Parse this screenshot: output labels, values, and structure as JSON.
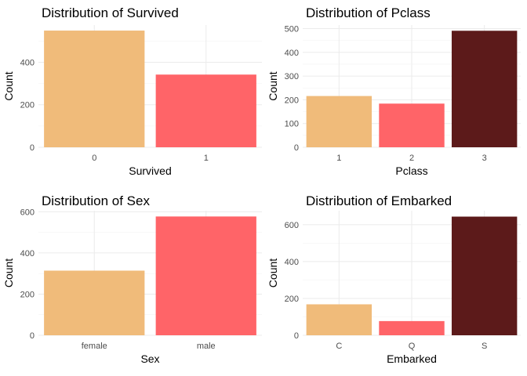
{
  "chart_data": [
    {
      "type": "bar",
      "title": "Distribution of Survived",
      "xlabel": "Survived",
      "ylabel": "Count",
      "categories": [
        "0",
        "1"
      ],
      "values": [
        549,
        342
      ],
      "ylim": [
        0,
        575
      ],
      "yticks": [
        0,
        200,
        400
      ],
      "colors": [
        "#F0BB7A",
        "#FF6468"
      ],
      "grid": true,
      "legend": "none"
    },
    {
      "type": "bar",
      "title": "Distribution of Pclass",
      "xlabel": "Pclass",
      "ylabel": "Count",
      "categories": [
        "1",
        "2",
        "3"
      ],
      "values": [
        216,
        184,
        491
      ],
      "ylim": [
        0,
        515
      ],
      "yticks": [
        0,
        100,
        200,
        300,
        400,
        500
      ],
      "colors": [
        "#F0BB7A",
        "#FF6468",
        "#5C1A1A"
      ],
      "grid": true,
      "legend": "none"
    },
    {
      "type": "bar",
      "title": "Distribution of Sex",
      "xlabel": "Sex",
      "ylabel": "Count",
      "categories": [
        "female",
        "male"
      ],
      "values": [
        314,
        577
      ],
      "ylim": [
        0,
        605
      ],
      "yticks": [
        0,
        200,
        400,
        600
      ],
      "colors": [
        "#F0BB7A",
        "#FF6468"
      ],
      "grid": true,
      "legend": "none"
    },
    {
      "type": "bar",
      "title": "Distribution of Embarked",
      "xlabel": "Embarked",
      "ylabel": "Count",
      "categories": [
        "C",
        "Q",
        "S"
      ],
      "values": [
        168,
        77,
        644
      ],
      "ylim": [
        0,
        676
      ],
      "yticks": [
        0,
        200,
        400,
        600
      ],
      "colors": [
        "#F0BB7A",
        "#FF6468",
        "#5C1A1A"
      ],
      "grid": true,
      "legend": "none"
    }
  ]
}
